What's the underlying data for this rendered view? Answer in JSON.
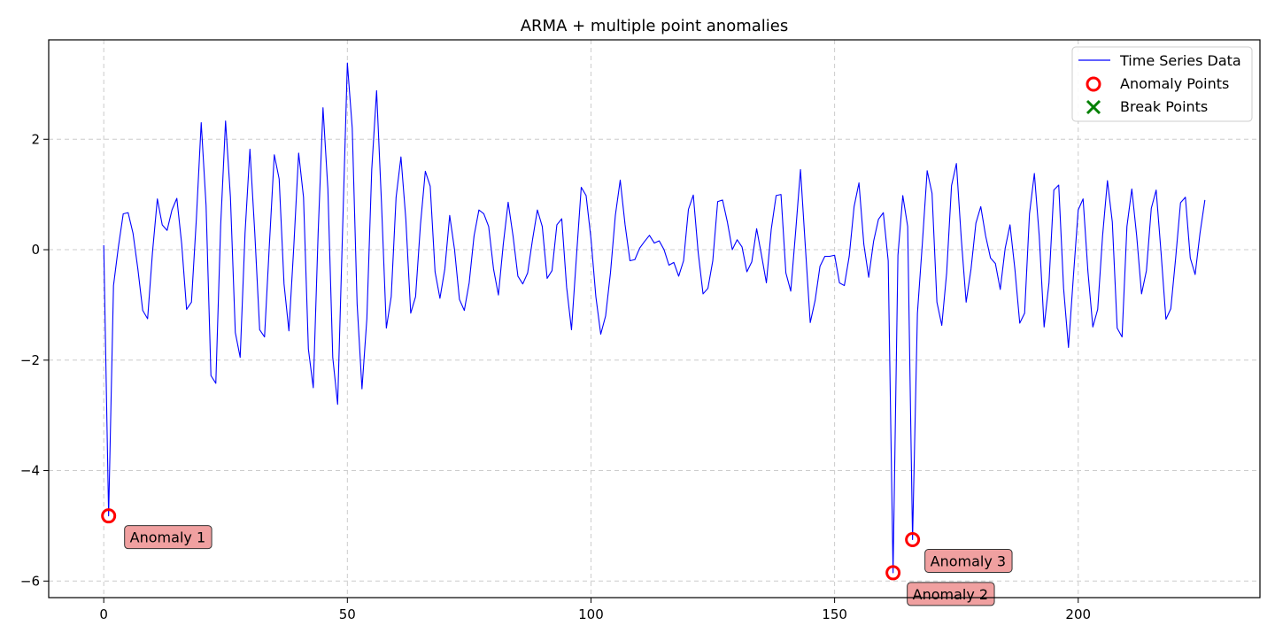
{
  "chart_data": {
    "type": "line",
    "title": "ARMA + multiple point anomalies",
    "xlabel": "",
    "ylabel": "",
    "xlim": [
      -11.3,
      237.3
    ],
    "ylim": [
      -6.3,
      3.8
    ],
    "x_ticks": [
      0,
      50,
      100,
      150,
      200
    ],
    "y_ticks": [
      -6,
      -4,
      -2,
      0,
      2
    ],
    "grid": true,
    "legend_position": "top-right",
    "series": [
      {
        "name": "Time Series Data",
        "color": "#0000ff",
        "x_start": 0,
        "values": [
          0.08,
          -4.82,
          -0.65,
          0.05,
          0.65,
          0.67,
          0.3,
          -0.35,
          -1.1,
          -1.25,
          -0.05,
          0.92,
          0.45,
          0.35,
          0.72,
          0.93,
          0.1,
          -1.08,
          -0.95,
          0.55,
          2.3,
          0.8,
          -2.28,
          -2.42,
          0.45,
          2.33,
          0.95,
          -1.5,
          -1.95,
          0.3,
          1.82,
          0.3,
          -1.45,
          -1.58,
          0.1,
          1.72,
          1.28,
          -0.62,
          -1.47,
          0.05,
          1.75,
          0.95,
          -1.8,
          -2.5,
          0.3,
          2.57,
          1.1,
          -1.95,
          -2.8,
          0.3,
          3.38,
          2.2,
          -0.98,
          -2.52,
          -1.25,
          1.45,
          2.88,
          0.85,
          -1.42,
          -0.85,
          0.95,
          1.68,
          0.55,
          -1.15,
          -0.85,
          0.45,
          1.42,
          1.15,
          -0.4,
          -0.88,
          -0.35,
          0.62,
          0.0,
          -0.9,
          -1.1,
          -0.6,
          0.25,
          0.72,
          0.65,
          0.42,
          -0.35,
          -0.82,
          0.1,
          0.86,
          0.25,
          -0.48,
          -0.62,
          -0.42,
          0.18,
          0.72,
          0.42,
          -0.52,
          -0.38,
          0.45,
          0.56,
          -0.68,
          -1.45,
          -0.15,
          1.13,
          0.98,
          0.2,
          -0.85,
          -1.53,
          -1.2,
          -0.42,
          0.62,
          1.26,
          0.45,
          -0.2,
          -0.18,
          0.03,
          0.15,
          0.26,
          0.12,
          0.16,
          0.0,
          -0.28,
          -0.23,
          -0.48,
          -0.2,
          0.73,
          0.99,
          -0.05,
          -0.8,
          -0.7,
          -0.2,
          0.87,
          0.9,
          0.5,
          0.0,
          0.18,
          0.05,
          -0.4,
          -0.22,
          0.38,
          -0.1,
          -0.6,
          0.37,
          0.98,
          1.0,
          -0.42,
          -0.75,
          0.32,
          1.45,
          0.05,
          -1.32,
          -0.92,
          -0.3,
          -0.12,
          -0.12,
          -0.1,
          -0.6,
          -0.65,
          -0.12,
          0.78,
          1.21,
          0.1,
          -0.5,
          0.15,
          0.55,
          0.67,
          -0.2,
          -5.85,
          -0.1,
          0.98,
          0.42,
          -5.25,
          -1.15,
          0.1,
          1.43,
          1.02,
          -0.95,
          -1.37,
          -0.42,
          1.16,
          1.56,
          0.2,
          -0.95,
          -0.35,
          0.48,
          0.78,
          0.25,
          -0.15,
          -0.25,
          -0.72,
          0.02,
          0.45,
          -0.35,
          -1.33,
          -1.15,
          0.65,
          1.38,
          0.25,
          -1.4,
          -0.6,
          1.08,
          1.17,
          -0.7,
          -1.77,
          -0.5,
          0.72,
          0.92,
          -0.4,
          -1.4,
          -1.08,
          0.25,
          1.25,
          0.5,
          -1.42,
          -1.58,
          0.42,
          1.1,
          0.25,
          -0.8,
          -0.38,
          0.75,
          1.08,
          -0.05,
          -1.26,
          -1.07,
          -0.15,
          0.85,
          0.95,
          -0.15,
          -0.45,
          0.3,
          0.9
        ]
      },
      {
        "name": "Anomaly Points",
        "color": "#ff0000",
        "marker": "hollow-circle",
        "points": [
          {
            "x": 1,
            "y": -4.82
          },
          {
            "x": 162,
            "y": -5.85
          },
          {
            "x": 166,
            "y": -5.25
          }
        ]
      },
      {
        "name": "Break Points",
        "color": "#008000",
        "marker": "x",
        "points": []
      }
    ],
    "annotations": [
      {
        "text": "Anomaly 1",
        "x": 1,
        "y": -4.82
      },
      {
        "text": "Anomaly 2",
        "x": 162,
        "y": -5.85
      },
      {
        "text": "Anomaly 3",
        "x": 166,
        "y": -5.25
      }
    ],
    "annotation_style": {
      "fill": "#f0a0a0",
      "stroke": "#333333"
    }
  }
}
